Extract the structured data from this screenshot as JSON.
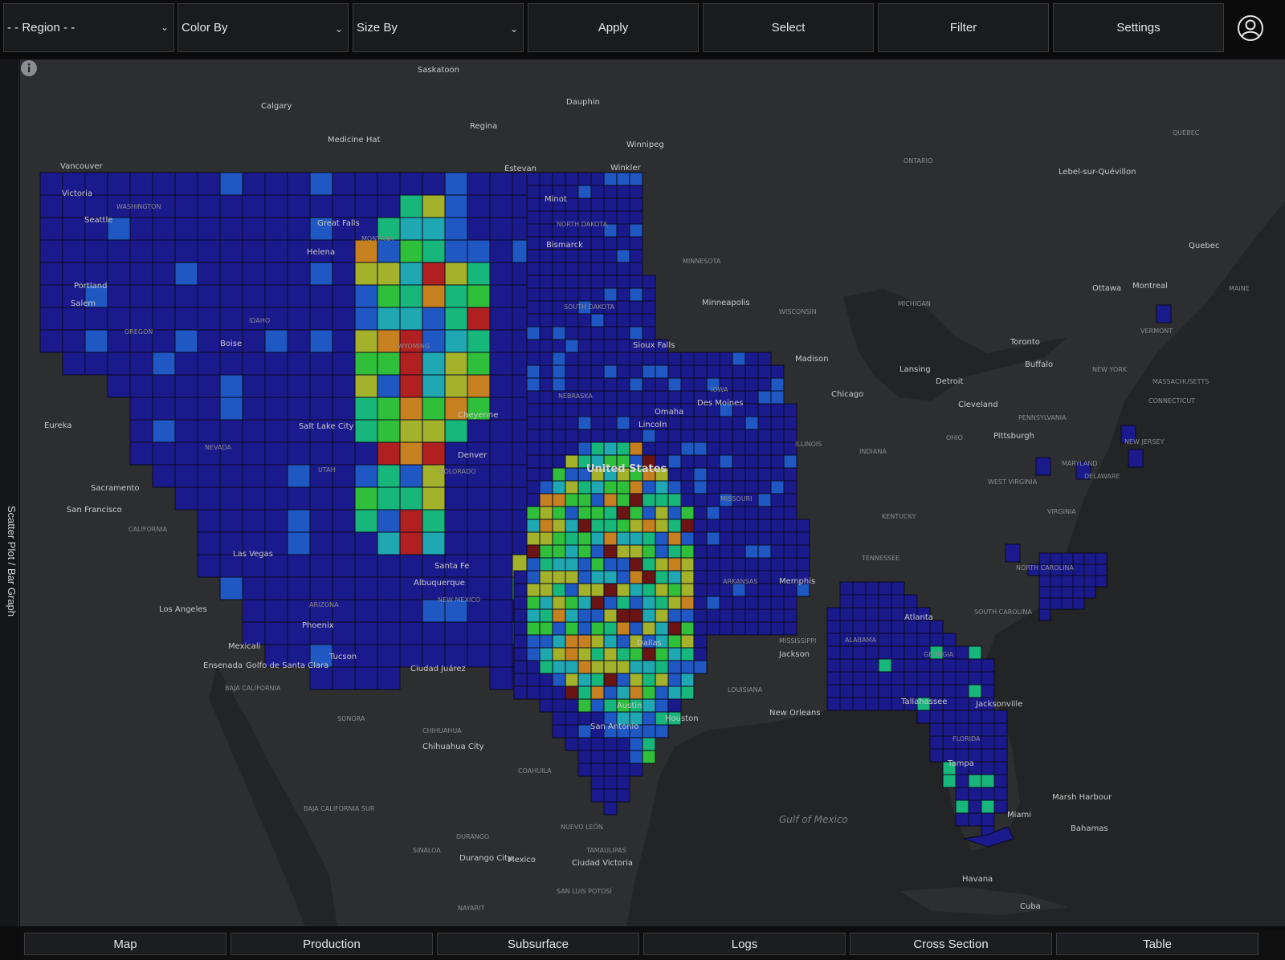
{
  "toolbar": {
    "region": {
      "value": "- - Region - -"
    },
    "color_by": {
      "value": "Color By"
    },
    "size_by": {
      "value": "Size By"
    },
    "apply_label": "Apply",
    "select_label": "Select",
    "filter_label": "Filter",
    "settings_label": "Settings",
    "user_icon": "user-circle-icon"
  },
  "side_tab": {
    "label": "Scatter Plot / Bar Graph"
  },
  "map": {
    "compass_icon": "compass-icon",
    "info_icon": "info-icon",
    "colors": {
      "water": "#232425",
      "land": "#2d2e30",
      "county_low": "#1a1a8c",
      "county_border": "#0a0a1e",
      "scale": [
        "#1a1a8c",
        "#1f57c3",
        "#1fa7b2",
        "#17b67b",
        "#2fbf3a",
        "#a3b22a",
        "#c6801f",
        "#b02020",
        "#6b1414"
      ]
    },
    "labels": {
      "cities": [
        "Saskatoon",
        "Calgary",
        "Regina",
        "Dauphin",
        "Winnipeg",
        "Medicine Hat",
        "Estevan",
        "Winkler",
        "Vancouver",
        "Victoria",
        "Seattle",
        "Great Falls",
        "Helena",
        "Minot",
        "Bismarck",
        "Portland",
        "Salem",
        "Boise",
        "Minneapolis",
        "Sioux Falls",
        "Madison",
        "Toronto",
        "Ottawa",
        "Montreal",
        "Quebec",
        "Lebel-sur-Quévillon",
        "Lansing",
        "Detroit",
        "Buffalo",
        "Chicago",
        "Cleveland",
        "Pittsburgh",
        "Eureka",
        "Salt Lake City",
        "Cheyenne",
        "Omaha",
        "Des Moines",
        "Lincoln",
        "Denver",
        "Sacramento",
        "San Francisco",
        "Las Vegas",
        "Santa Fe",
        "Albuquerque",
        "Los Angeles",
        "Phoenix",
        "Mexicali",
        "Ensenada",
        "Golfo de Santa Clara",
        "Tucson",
        "Ciudad Juárez",
        "Memphis",
        "Atlanta",
        "Jackson",
        "Dallas",
        "Austin",
        "Houston",
        "San Antonio",
        "New Orleans",
        "Tallahassee",
        "Jacksonville",
        "Tampa",
        "Miami",
        "Marsh Harbour",
        "Bahamas",
        "Havana",
        "Cuba",
        "Chihuahua City",
        "Durango City",
        "Ciudad Victoria",
        "Mexico"
      ],
      "country": "United States",
      "regions": [
        "WASHINGTON",
        "MONTANA",
        "NORTH DAKOTA",
        "SOUTH DAKOTA",
        "MINNESOTA",
        "WISCONSIN",
        "MICHIGAN",
        "ONTARIO",
        "QUÉBEC",
        "OREGON",
        "IDAHO",
        "WYOMING",
        "NEBRASKA",
        "IOWA",
        "ILLINOIS",
        "INDIANA",
        "OHIO",
        "PENNSYLVANIA",
        "NEW YORK",
        "NEVADA",
        "UTAH",
        "COLORADO",
        "MISSOURI",
        "KENTUCKY",
        "WEST VIRGINIA",
        "VIRGINIA",
        "MARYLAND",
        "NEW JERSEY",
        "DELAWARE",
        "CONNECTICUT",
        "MASSACHUSETTS",
        "VERMONT",
        "MAINE",
        "CALIFORNIA",
        "ARIZONA",
        "NEW MEXICO",
        "TENNESSEE",
        "NORTH CAROLINA",
        "SOUTH CAROLINA",
        "ARKANSAS",
        "MISSISSIPPI",
        "ALABAMA",
        "GEORGIA",
        "LOUISIANA",
        "FLORIDA",
        "BAJA CALIFORNIA",
        "SONORA",
        "CHIHUAHUA",
        "COAHUILA",
        "NUEVO LEÓN",
        "TAMAULIPAS",
        "DURANGO",
        "SINALOA",
        "BAJA CALIFORNIA SUR",
        "SAN LUIS POTOSÍ",
        "NAYARIT"
      ],
      "water": "Gulf of Mexico"
    }
  },
  "bottom_tabs": [
    {
      "label": "Map"
    },
    {
      "label": "Production"
    },
    {
      "label": "Subsurface"
    },
    {
      "label": "Logs"
    },
    {
      "label": "Cross Section"
    },
    {
      "label": "Table"
    }
  ]
}
